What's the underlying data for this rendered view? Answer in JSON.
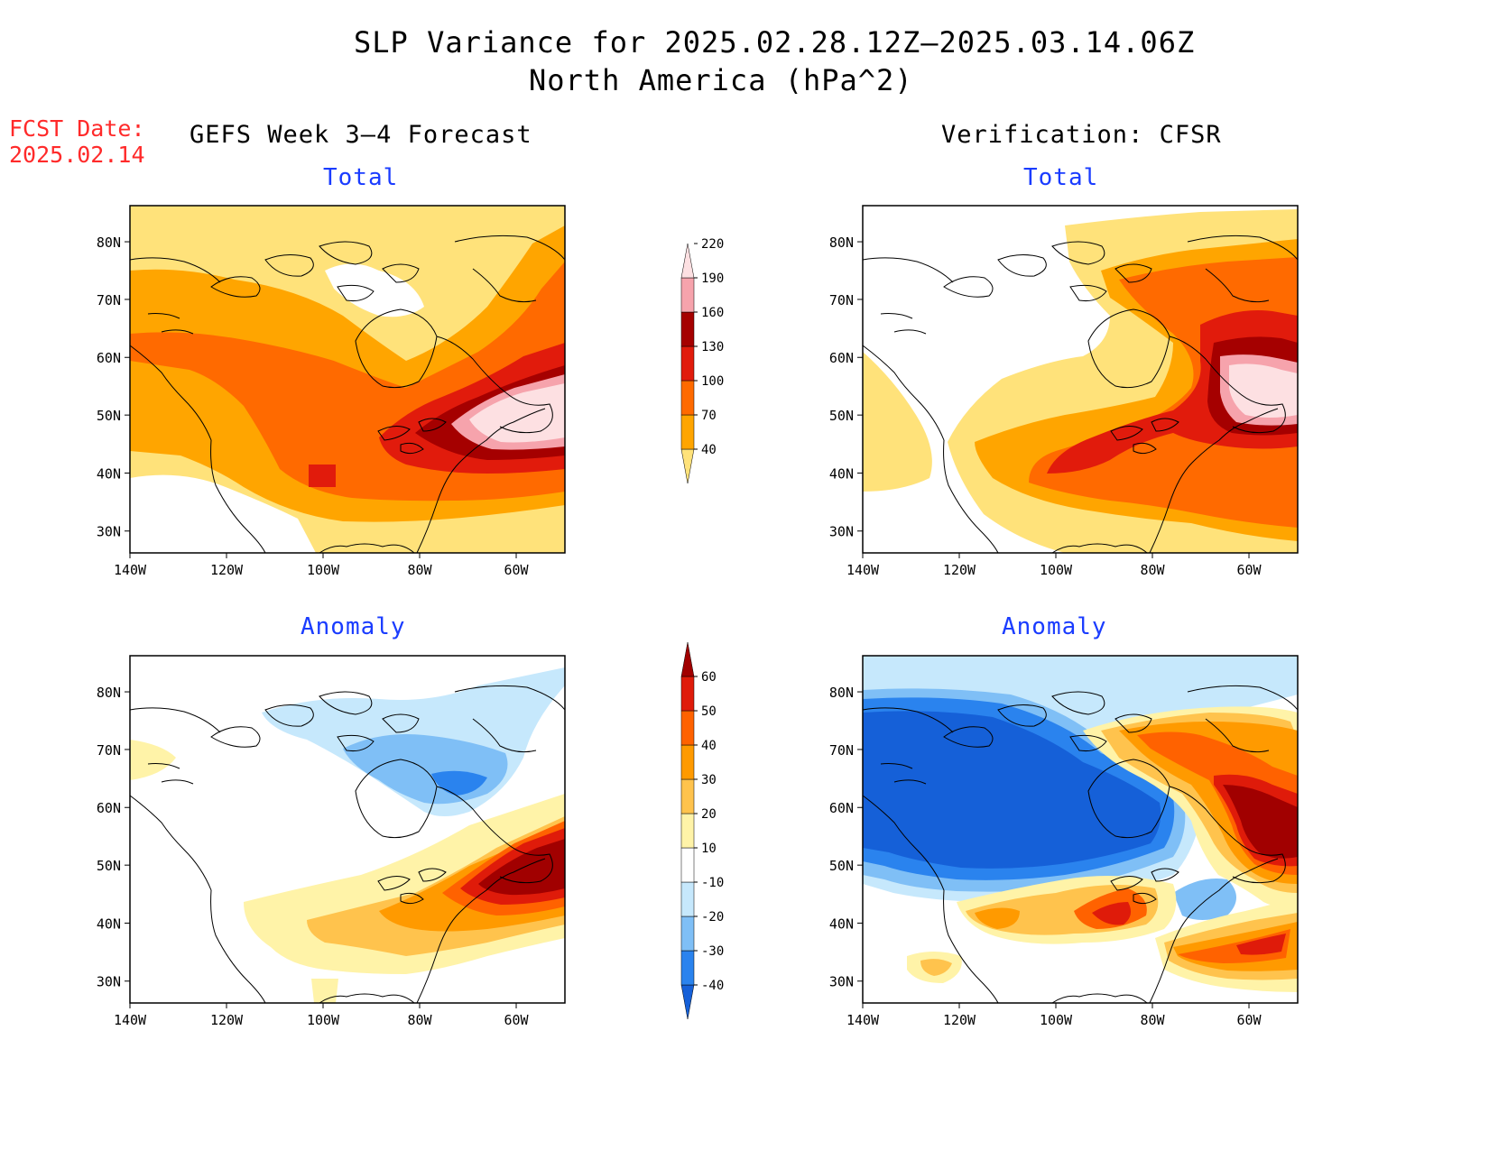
{
  "title": {
    "line1": "SLP Variance for 2025.02.28.12Z–2025.03.14.06Z",
    "line2": "North America (hPa^2)"
  },
  "fcst": {
    "label": "FCST Date:",
    "date": "2025.02.14"
  },
  "columns": {
    "left": "GEFS Week 3–4 Forecast",
    "right": "Verification: CFSR"
  },
  "panels": [
    {
      "id": "fcst-total",
      "title": "Total",
      "field": "total",
      "source": "forecast"
    },
    {
      "id": "verif-total",
      "title": "Total",
      "field": "total",
      "source": "verification"
    },
    {
      "id": "fcst-anomaly",
      "title": "Anomaly",
      "field": "anomaly",
      "source": "forecast"
    },
    {
      "id": "verif-anomaly",
      "title": "Anomaly",
      "field": "anomaly",
      "source": "verification"
    }
  ],
  "axes": {
    "lat_ticks": [
      "80N",
      "70N",
      "60N",
      "50N",
      "40N",
      "30N"
    ],
    "lon_ticks": [
      "140W",
      "120W",
      "100W",
      "80W",
      "60W"
    ]
  },
  "colorbars": {
    "total": {
      "levels": [
        "40",
        "70",
        "100",
        "130",
        "160",
        "190",
        "220"
      ],
      "colors": [
        "#ffe27a",
        "#ffa500",
        "#ff6a00",
        "#e11b0c",
        "#a50000",
        "#f6a3ac",
        "#fde0e2"
      ]
    },
    "anomaly": {
      "levels": [
        "-40",
        "-30",
        "-20",
        "-10",
        "10",
        "20",
        "30",
        "40",
        "50",
        "60"
      ],
      "colors": [
        "#1560d8",
        "#2a83ee",
        "#7fbff6",
        "#c6e8fc",
        "#ffffff",
        "#fff3a8",
        "#ffc34d",
        "#ff9a00",
        "#ff6200",
        "#df1b0a",
        "#a10000"
      ]
    }
  }
}
